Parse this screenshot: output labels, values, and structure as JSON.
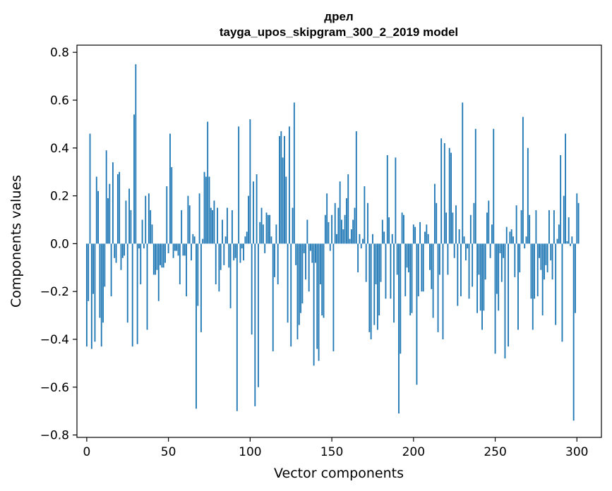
{
  "chart_data": {
    "type": "bar",
    "title_line1": "дрел",
    "title_line2": "tayga_upos_skipgram_300_2_2019 model",
    "xlabel": "Vector components",
    "ylabel": "Components values",
    "xlim": [
      -6,
      315
    ],
    "ylim": [
      -0.81,
      0.83
    ],
    "xticks": [
      0,
      50,
      100,
      150,
      200,
      250,
      300
    ],
    "yticks": [
      -0.8,
      -0.6,
      -0.4,
      -0.2,
      0.0,
      0.2,
      0.4,
      0.6,
      0.8
    ],
    "ytick_labels": [
      "−0.8",
      "−0.6",
      "−0.4",
      "−0.2",
      "0.0",
      "0.2",
      "0.4",
      "0.6",
      "0.8"
    ],
    "grid": false,
    "bar_color": "#1f77b4",
    "values": [
      -0.43,
      -0.24,
      0.46,
      -0.44,
      -0.21,
      -0.41,
      0.28,
      0.22,
      -0.31,
      -0.43,
      -0.33,
      -0.18,
      0.39,
      0.19,
      0.25,
      -0.22,
      0.34,
      -0.06,
      -0.08,
      0.29,
      0.3,
      -0.11,
      -0.06,
      -0.05,
      0.18,
      -0.33,
      0.23,
      0.14,
      -0.43,
      0.54,
      0.75,
      -0.42,
      -0.02,
      -0.17,
      0.1,
      -0.02,
      0.2,
      -0.36,
      0.21,
      0.14,
      0.08,
      -0.13,
      -0.13,
      -0.11,
      -0.24,
      -0.09,
      -0.1,
      -0.1,
      -0.08,
      0.24,
      -0.04,
      0.46,
      0.32,
      -0.06,
      -0.03,
      -0.03,
      -0.05,
      -0.17,
      0.14,
      -0.05,
      -0.05,
      -0.22,
      0.2,
      0.16,
      -0.07,
      0.04,
      0.03,
      -0.69,
      -0.26,
      0.21,
      -0.37,
      0.02,
      0.3,
      0.28,
      0.51,
      0.28,
      0.15,
      0.14,
      0.18,
      -0.17,
      0.15,
      -0.2,
      -0.11,
      0.1,
      -0.09,
      0.03,
      0.15,
      -0.1,
      -0.27,
      0.14,
      -0.07,
      -0.06,
      -0.7,
      0.49,
      -0.08,
      -0.02,
      -0.07,
      0.03,
      0.05,
      0.2,
      0.52,
      -0.38,
      0.26,
      -0.68,
      0.29,
      -0.6,
      0.09,
      0.15,
      0.08,
      -0.04,
      0.13,
      0.12,
      0.12,
      0.03,
      -0.45,
      -0.14,
      0.08,
      -0.17,
      0.45,
      0.47,
      0.36,
      0.45,
      0.28,
      -0.33,
      0.49,
      -0.43,
      0.15,
      0.59,
      -0.09,
      -0.4,
      -0.34,
      -0.29,
      -0.25,
      -0.04,
      -0.15,
      0.1,
      -0.2,
      -0.03,
      -0.08,
      -0.51,
      -0.08,
      -0.44,
      -0.49,
      -0.17,
      -0.3,
      -0.31,
      0.12,
      0.21,
      0.09,
      -0.03,
      0.12,
      -0.45,
      0.17,
      0.04,
      0.15,
      0.26,
      0.1,
      0.06,
      0.12,
      0.19,
      0.29,
      0.02,
      0.06,
      0.1,
      0.15,
      0.47,
      -0.12,
      0.04,
      -0.02,
      0.02,
      0.24,
      -0.16,
      0.17,
      -0.37,
      -0.4,
      0.04,
      -0.34,
      -0.17,
      -0.36,
      -0.3,
      -0.16,
      0.1,
      0.05,
      -0.23,
      0.37,
      0.11,
      -0.23,
      0.04,
      -0.33,
      0.36,
      -0.13,
      -0.71,
      -0.46,
      0.13,
      0.12,
      -0.22,
      -0.1,
      -0.12,
      -0.3,
      -0.29,
      0.08,
      0.07,
      -0.59,
      -0.22,
      0.09,
      -0.2,
      -0.2,
      0.05,
      0.08,
      0.04,
      -0.11,
      -0.19,
      -0.31,
      0.25,
      0.17,
      -0.37,
      -0.13,
      0.44,
      -0.4,
      0.42,
      0.13,
      -0.13,
      0.4,
      0.38,
      0.13,
      -0.06,
      0.16,
      -0.26,
      0.06,
      -0.22,
      0.59,
      0.03,
      -0.07,
      -0.02,
      -0.23,
      0.12,
      -0.18,
      0.17,
      0.48,
      -0.29,
      -0.13,
      -0.28,
      -0.36,
      -0.28,
      -0.15,
      0.13,
      0.18,
      -0.06,
      0.08,
      0.48,
      -0.46,
      -0.21,
      -0.28,
      -0.04,
      -0.16,
      -0.06,
      -0.48,
      0.07,
      -0.43,
      0.05,
      0.06,
      0.03,
      -0.14,
      0.16,
      -0.36,
      -0.12,
      0.14,
      0.53,
      -0.02,
      0.03,
      0.4,
      0.12,
      -0.23,
      -0.36,
      -0.23,
      0.14,
      -0.22,
      -0.06,
      -0.11,
      -0.3,
      -0.15,
      -0.09,
      -0.12,
      0.14,
      -0.07,
      -0.15,
      0.14,
      -0.34,
      0.02,
      0.08,
      0.37,
      -0.41,
      0.2,
      0.46,
      0.01,
      0.11,
      -0.01,
      0.03,
      -0.74,
      -0.29,
      0.21,
      0.17
    ]
  }
}
